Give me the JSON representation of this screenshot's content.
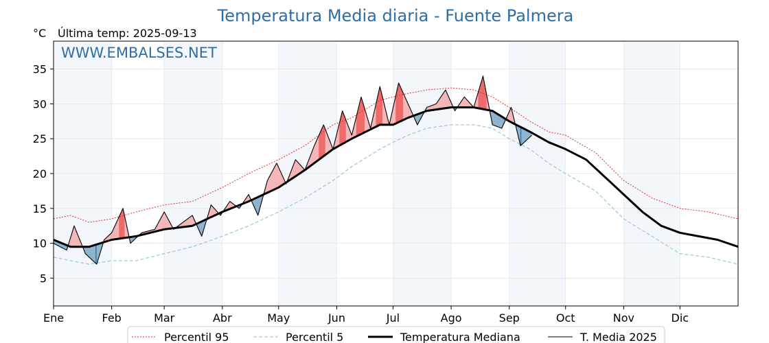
{
  "title": "Temperatura Media diaria - Fuente Palmera",
  "unit_label": "°C",
  "last_temp_label": "Última temp: 2025-09-13",
  "watermark": "WWW.EMBALSES.NET",
  "colors": {
    "title": "#2f6ea5",
    "p95": "#e8262a",
    "p5": "#9ccbe0",
    "above_fill": "#f4b7b7",
    "above_fill_strong": "#ee6b6b",
    "below_fill": "#8eb4d0",
    "below_fill_strong": "#3a6f9a",
    "band": "#f3f7fb"
  },
  "chart_data": {
    "type": "line",
    "x_domain": [
      1,
      366
    ],
    "ylim": [
      1,
      39
    ],
    "yticks": [
      5,
      10,
      15,
      20,
      25,
      30,
      35
    ],
    "grid": true,
    "legend_position": "bottom",
    "months": [
      {
        "label": "Ene",
        "start": 1
      },
      {
        "label": "Feb",
        "start": 32
      },
      {
        "label": "Mar",
        "start": 60
      },
      {
        "label": "Abr",
        "start": 91
      },
      {
        "label": "May",
        "start": 121
      },
      {
        "label": "Jun",
        "start": 152
      },
      {
        "label": "Jul",
        "start": 182
      },
      {
        "label": "Ago",
        "start": 213
      },
      {
        "label": "Sep",
        "start": 244
      },
      {
        "label": "Oct",
        "start": 274
      },
      {
        "label": "Nov",
        "start": 305
      },
      {
        "label": "Dic",
        "start": 335
      }
    ],
    "series": [
      {
        "name": "Percentil 95",
        "style": "dotted-red",
        "day": [
          1,
          10,
          20,
          32,
          45,
          60,
          75,
          91,
          105,
          121,
          135,
          150,
          160,
          175,
          182,
          190,
          200,
          213,
          225,
          235,
          244,
          255,
          265,
          274,
          290,
          305,
          320,
          335,
          350,
          366
        ],
        "values": [
          13.5,
          14.0,
          13.0,
          13.5,
          14.5,
          15.5,
          16.0,
          18.0,
          20.0,
          22.0,
          24.0,
          27.0,
          28.0,
          30.5,
          31.0,
          31.5,
          32.0,
          32.3,
          32.0,
          31.0,
          29.5,
          27.5,
          26.0,
          25.5,
          23.0,
          19.0,
          16.5,
          15.0,
          14.5,
          13.5
        ]
      },
      {
        "name": "Percentil 5",
        "style": "dashed-lightblue",
        "day": [
          1,
          10,
          20,
          32,
          45,
          60,
          75,
          91,
          105,
          121,
          135,
          150,
          160,
          175,
          182,
          190,
          200,
          213,
          225,
          235,
          244,
          255,
          265,
          274,
          290,
          305,
          320,
          335,
          350,
          366
        ],
        "values": [
          8.0,
          7.5,
          7.0,
          7.5,
          7.5,
          8.5,
          9.5,
          11.0,
          12.5,
          14.5,
          16.5,
          19.0,
          21.0,
          23.5,
          24.5,
          25.5,
          26.5,
          27.0,
          27.0,
          26.5,
          25.0,
          23.5,
          21.5,
          20.0,
          17.5,
          13.5,
          11.0,
          8.5,
          8.0,
          7.0
        ]
      },
      {
        "name": "Temperatura Mediana",
        "style": "thick-black",
        "day": [
          1,
          10,
          20,
          32,
          45,
          60,
          75,
          91,
          105,
          121,
          135,
          150,
          160,
          175,
          182,
          190,
          200,
          213,
          225,
          235,
          244,
          255,
          265,
          274,
          285,
          295,
          305,
          315,
          325,
          335,
          345,
          355,
          366
        ],
        "values": [
          10.5,
          9.5,
          9.5,
          10.5,
          11.0,
          12.0,
          12.5,
          14.5,
          16.0,
          18.0,
          20.5,
          23.5,
          25.0,
          27.0,
          27.0,
          28.0,
          29.0,
          29.5,
          29.5,
          29.0,
          27.5,
          26.0,
          24.5,
          23.5,
          22.0,
          19.5,
          17.0,
          14.5,
          12.5,
          11.5,
          11.0,
          10.5,
          9.5
        ]
      },
      {
        "name": "T. Media 2025",
        "style": "thin-black",
        "day": [
          1,
          8,
          12,
          18,
          24,
          28,
          32,
          38,
          42,
          48,
          55,
          60,
          65,
          70,
          75,
          80,
          85,
          90,
          95,
          100,
          105,
          110,
          115,
          120,
          125,
          130,
          135,
          140,
          145,
          150,
          155,
          160,
          165,
          170,
          175,
          180,
          185,
          190,
          195,
          200,
          205,
          210,
          215,
          220,
          225,
          230,
          235,
          240,
          245,
          250,
          256
        ],
        "values": [
          10.0,
          9.0,
          12.5,
          8.5,
          7.0,
          10.5,
          11.5,
          15.0,
          10.0,
          11.5,
          12.0,
          14.5,
          12.0,
          13.0,
          14.0,
          11.0,
          15.5,
          14.0,
          16.0,
          15.0,
          17.0,
          14.0,
          19.0,
          21.5,
          18.5,
          22.0,
          20.5,
          24.0,
          27.0,
          23.5,
          29.0,
          25.5,
          31.0,
          26.5,
          32.5,
          27.0,
          33.0,
          30.0,
          27.0,
          29.5,
          30.0,
          32.0,
          29.0,
          31.0,
          29.5,
          34.0,
          27.0,
          26.5,
          29.5,
          24.0,
          25.5
        ]
      }
    ]
  }
}
